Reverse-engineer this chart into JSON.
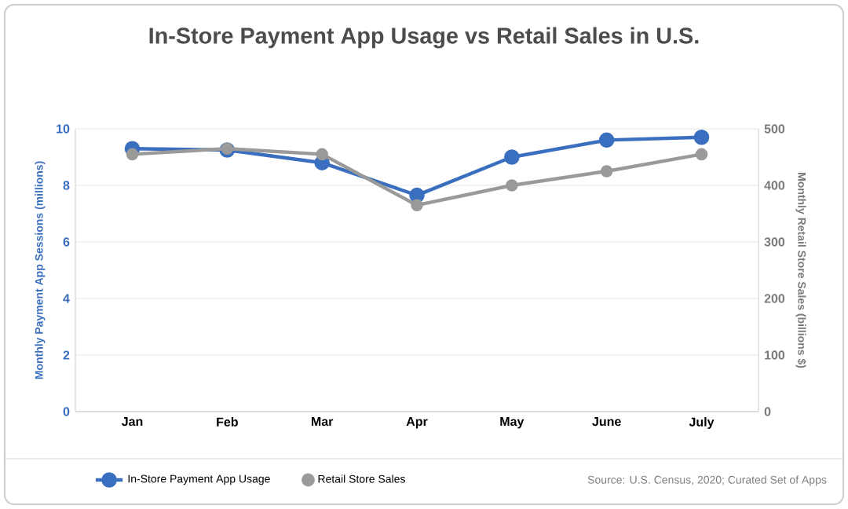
{
  "chart_data": {
    "type": "line",
    "title": "In-Store Payment App Usage vs Retail Sales in U.S.",
    "categories": [
      "Jan",
      "Feb",
      "Mar",
      "Apr",
      "May",
      "June",
      "July"
    ],
    "series": [
      {
        "name": "In-Store Payment App Usage",
        "color": "#3a6fc0",
        "values": [
          9.3,
          9.25,
          8.8,
          7.65,
          9.0,
          9.6,
          9.7
        ]
      },
      {
        "name": "Retail Store Sales",
        "color": "#9a9a9a",
        "axis": "y2",
        "values": [
          455,
          465,
          455,
          365,
          400,
          425,
          455
        ]
      }
    ],
    "ylabel": "Monthly Payment App Sessions (millions)",
    "y2label": "Monthly Retail Store Sales (billions $)",
    "ylim": [
      0,
      10
    ],
    "yticks": [
      0,
      2,
      4,
      6,
      8,
      10
    ],
    "y2lim": [
      0,
      500
    ],
    "y2ticks": [
      0,
      100,
      200,
      300,
      400,
      500
    ],
    "grid": "y",
    "legend": "bottom",
    "marker": "circle",
    "line_style": "solid",
    "annotations": [
      "Source: U.S. Census, 2020; Curated Set of Apps"
    ]
  }
}
